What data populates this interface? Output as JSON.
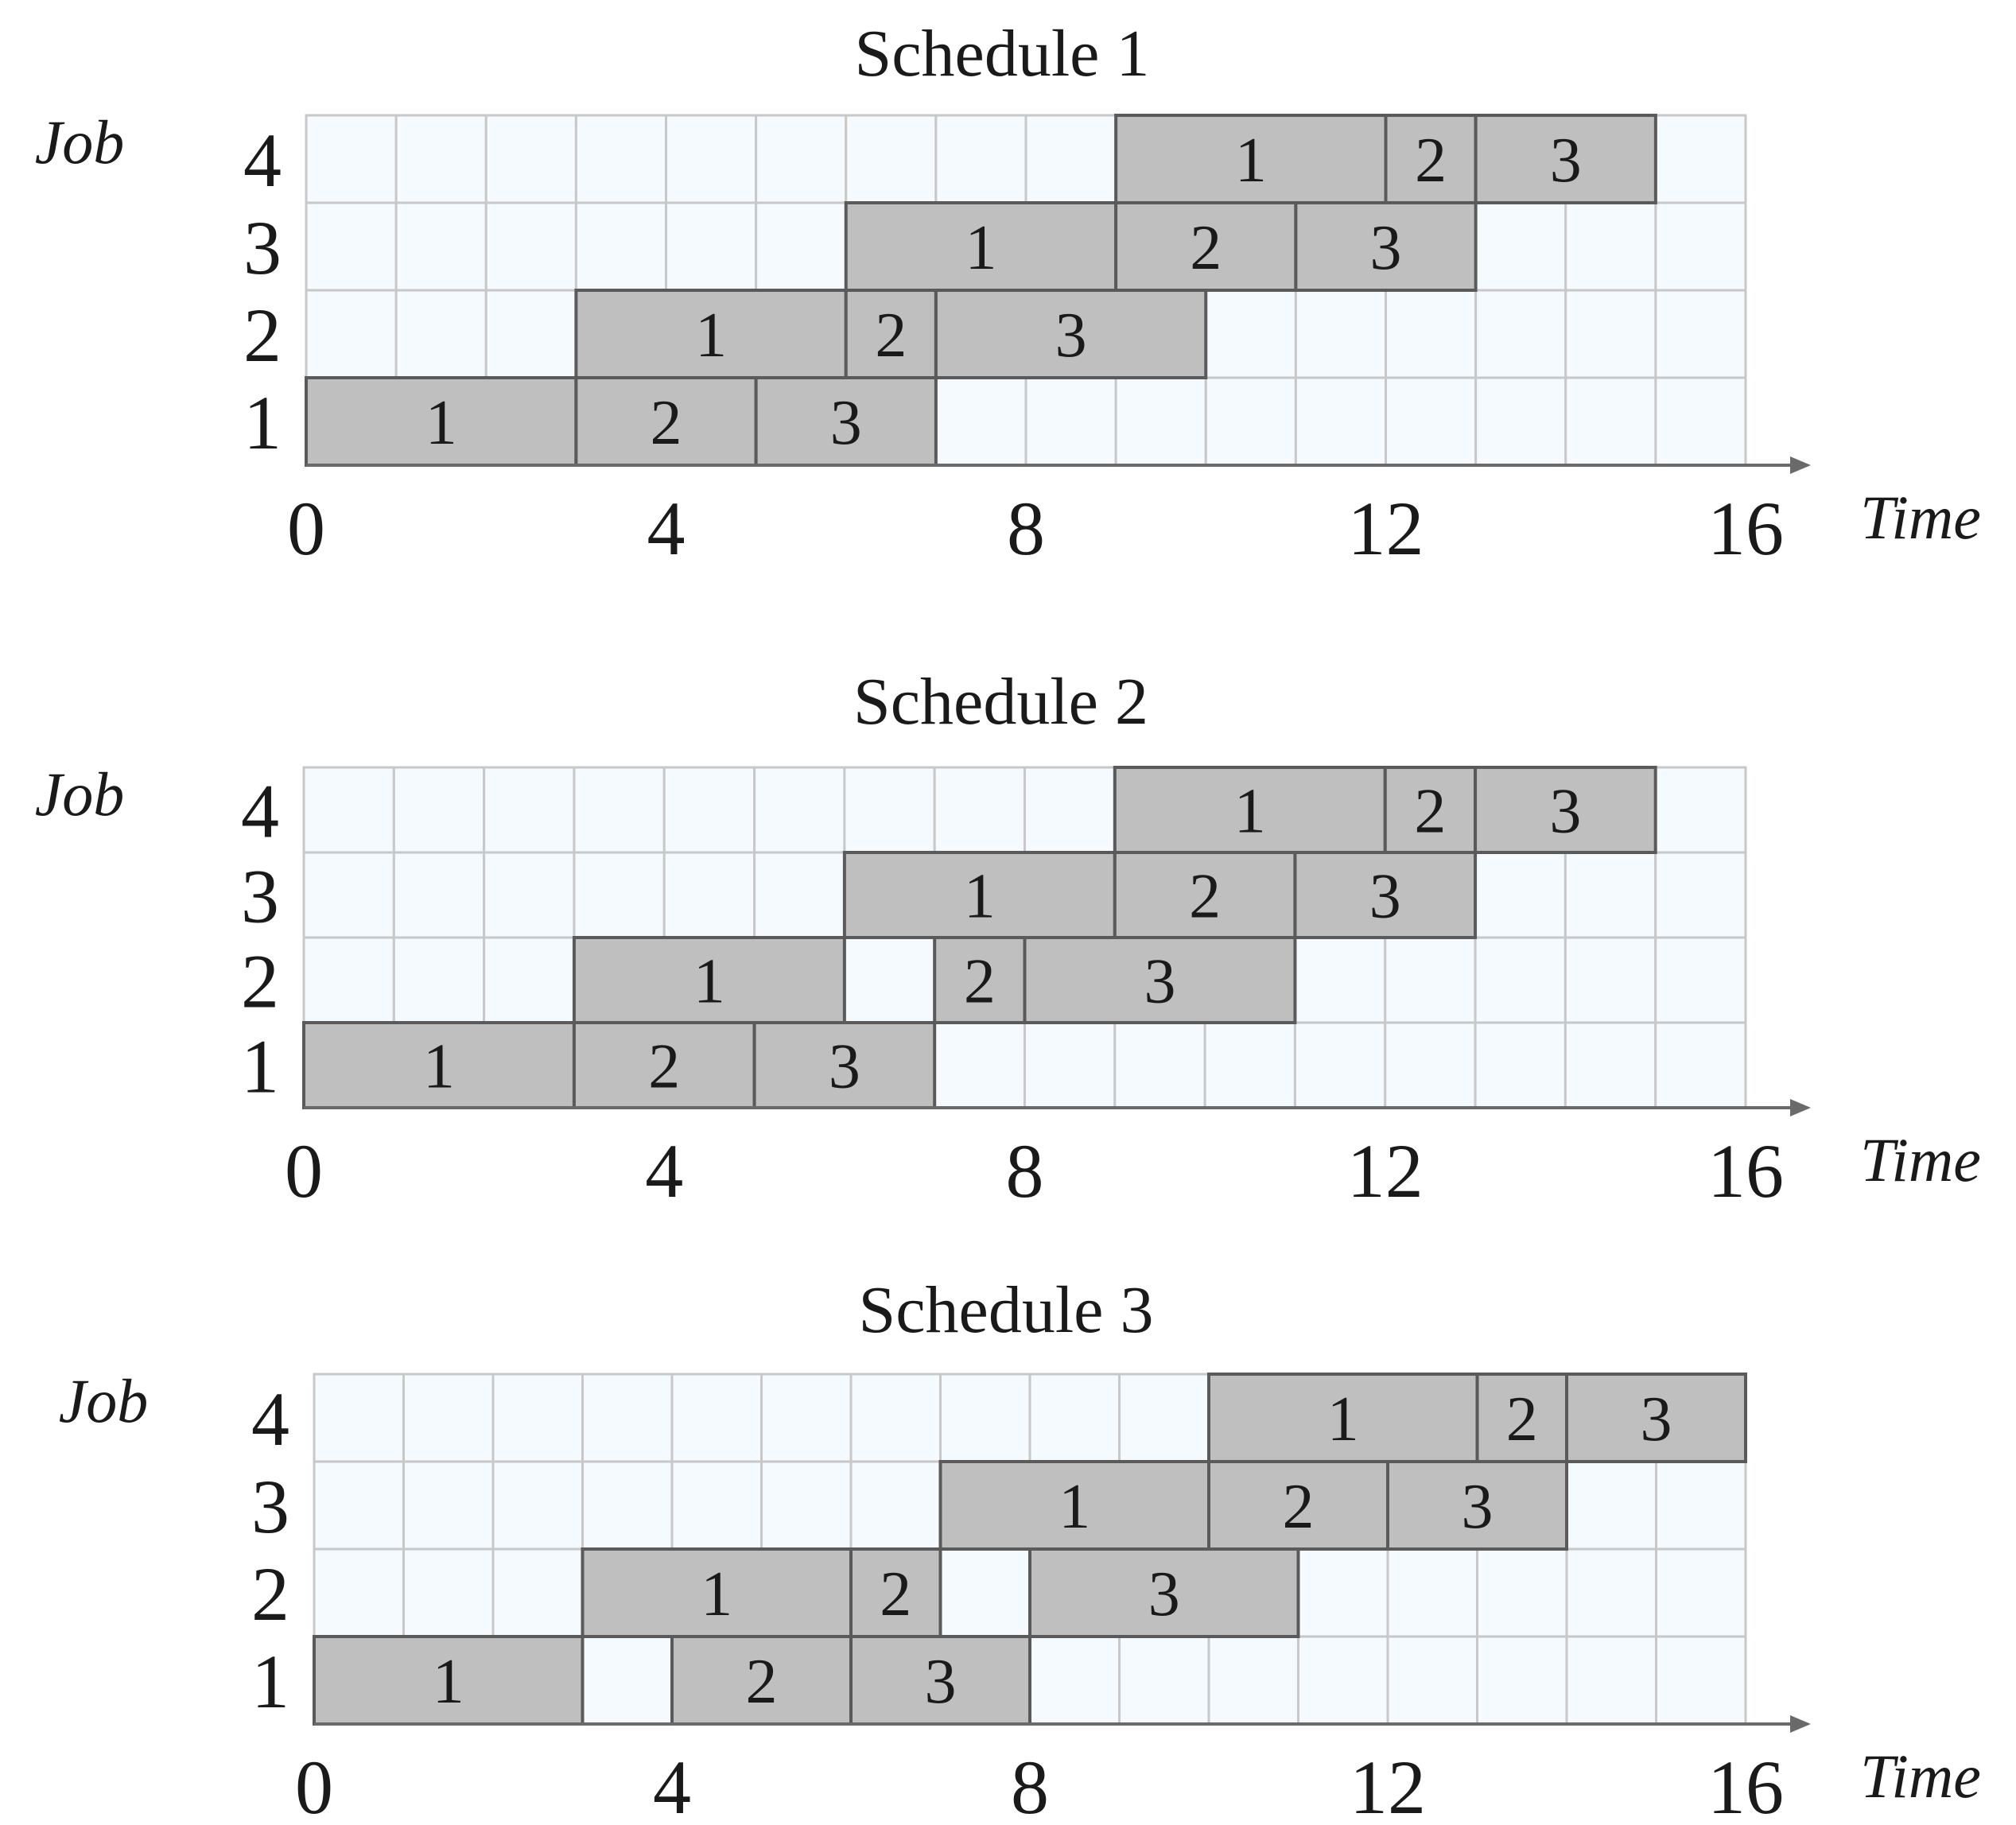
{
  "chart_data": [
    {
      "type": "gantt",
      "title": "Schedule 1",
      "ylabel": "Job",
      "xlabel": "Time",
      "xlim": [
        0,
        16
      ],
      "x_ticks": [
        0,
        4,
        8,
        12,
        16
      ],
      "jobs": [
        1,
        2,
        3,
        4
      ],
      "tasks": [
        {
          "job": 1,
          "label": "1",
          "start": 0,
          "end": 3
        },
        {
          "job": 1,
          "label": "2",
          "start": 3,
          "end": 5
        },
        {
          "job": 1,
          "label": "3",
          "start": 5,
          "end": 7
        },
        {
          "job": 2,
          "label": "1",
          "start": 3,
          "end": 6
        },
        {
          "job": 2,
          "label": "2",
          "start": 6,
          "end": 7
        },
        {
          "job": 2,
          "label": "3",
          "start": 7,
          "end": 10
        },
        {
          "job": 3,
          "label": "1",
          "start": 6,
          "end": 9
        },
        {
          "job": 3,
          "label": "2",
          "start": 9,
          "end": 11
        },
        {
          "job": 3,
          "label": "3",
          "start": 11,
          "end": 13
        },
        {
          "job": 4,
          "label": "1",
          "start": 9,
          "end": 12
        },
        {
          "job": 4,
          "label": "2",
          "start": 12,
          "end": 13
        },
        {
          "job": 4,
          "label": "3",
          "start": 13,
          "end": 15
        }
      ]
    },
    {
      "type": "gantt",
      "title": "Schedule 2",
      "ylabel": "Job",
      "xlabel": "Time",
      "xlim": [
        0,
        16
      ],
      "x_ticks": [
        0,
        4,
        8,
        12,
        16
      ],
      "jobs": [
        1,
        2,
        3,
        4
      ],
      "tasks": [
        {
          "job": 1,
          "label": "1",
          "start": 0,
          "end": 3
        },
        {
          "job": 1,
          "label": "2",
          "start": 3,
          "end": 5
        },
        {
          "job": 1,
          "label": "3",
          "start": 5,
          "end": 7
        },
        {
          "job": 2,
          "label": "1",
          "start": 3,
          "end": 6
        },
        {
          "job": 2,
          "label": "2",
          "start": 7,
          "end": 8
        },
        {
          "job": 2,
          "label": "3",
          "start": 8,
          "end": 11
        },
        {
          "job": 3,
          "label": "1",
          "start": 6,
          "end": 9
        },
        {
          "job": 3,
          "label": "2",
          "start": 9,
          "end": 11
        },
        {
          "job": 3,
          "label": "3",
          "start": 11,
          "end": 13
        },
        {
          "job": 4,
          "label": "1",
          "start": 9,
          "end": 12
        },
        {
          "job": 4,
          "label": "2",
          "start": 12,
          "end": 13
        },
        {
          "job": 4,
          "label": "3",
          "start": 13,
          "end": 15
        }
      ]
    },
    {
      "type": "gantt",
      "title": "Schedule 3",
      "ylabel": "Job",
      "xlabel": "Time",
      "xlim": [
        0,
        16
      ],
      "x_ticks": [
        0,
        4,
        8,
        12,
        16
      ],
      "jobs": [
        1,
        2,
        3,
        4
      ],
      "tasks": [
        {
          "job": 1,
          "label": "1",
          "start": 0,
          "end": 3
        },
        {
          "job": 1,
          "label": "2",
          "start": 4,
          "end": 6
        },
        {
          "job": 1,
          "label": "3",
          "start": 6,
          "end": 8
        },
        {
          "job": 2,
          "label": "1",
          "start": 3,
          "end": 6
        },
        {
          "job": 2,
          "label": "2",
          "start": 6,
          "end": 7
        },
        {
          "job": 2,
          "label": "3",
          "start": 8,
          "end": 11
        },
        {
          "job": 3,
          "label": "1",
          "start": 7,
          "end": 10
        },
        {
          "job": 3,
          "label": "2",
          "start": 10,
          "end": 12
        },
        {
          "job": 3,
          "label": "3",
          "start": 12,
          "end": 14
        },
        {
          "job": 4,
          "label": "1",
          "start": 10,
          "end": 13
        },
        {
          "job": 4,
          "label": "2",
          "start": 13,
          "end": 14
        },
        {
          "job": 4,
          "label": "3",
          "start": 14,
          "end": 16
        }
      ]
    }
  ]
}
